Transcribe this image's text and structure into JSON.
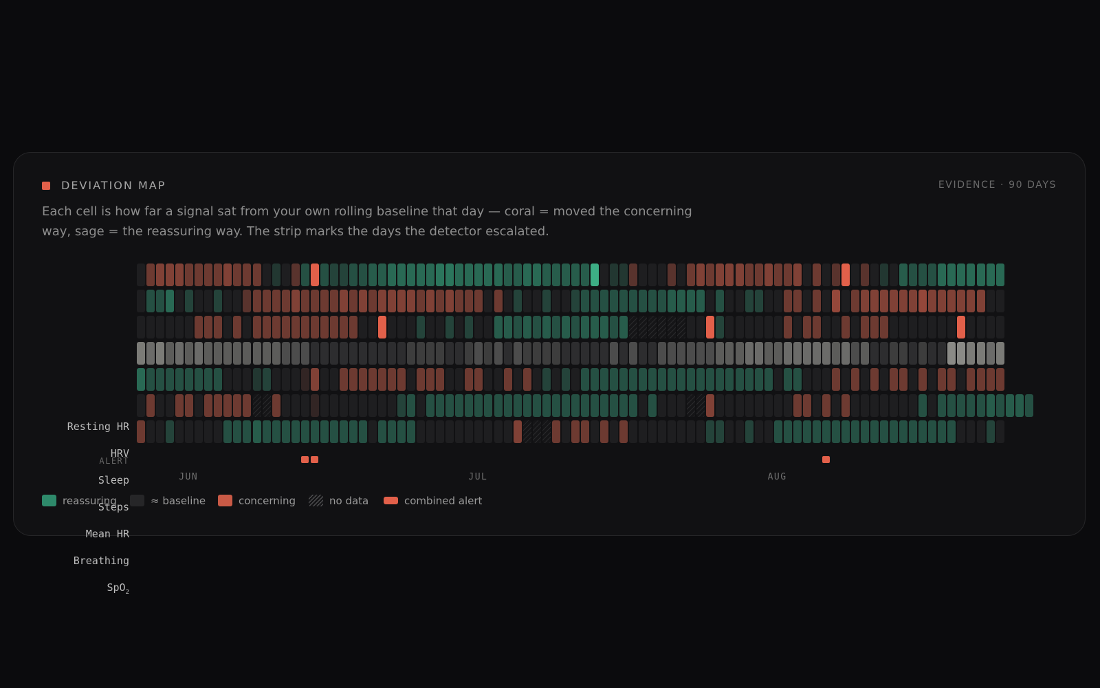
{
  "header": {
    "title": "DEVIATION MAP",
    "evidence": "EVIDENCE · 90 DAYS",
    "description": "Each cell is how far a signal sat from your own rolling baseline that day — coral = moved the concerning way, sage = the reassuring way. The strip marks the days the detector escalated."
  },
  "colors": {
    "reassuring": "#2e8a6b",
    "baseline": "#1e1e20",
    "concerning": "#c95a46",
    "alert": "#e2604a",
    "steps_neutral": "#7a7a78"
  },
  "chart_data": {
    "type": "heatmap",
    "days": 90,
    "scale_note": "values: negative = concerning (coral), positive = reassuring (sage), 0 = at baseline, null = no data; Steps shown in grey intensity",
    "months": [
      {
        "label": "JUN",
        "day_index": 5
      },
      {
        "label": "JUL",
        "day_index": 35
      },
      {
        "label": "AUG",
        "day_index": 66
      }
    ],
    "rows": [
      {
        "label": "Resting HR",
        "values": [
          0,
          -0.4,
          -0.5,
          -0.5,
          -0.5,
          -0.4,
          -0.4,
          -0.4,
          -0.4,
          -0.5,
          -0.4,
          -0.4,
          -0.4,
          0,
          0.2,
          0,
          -0.3,
          0.4,
          -1.0,
          0.4,
          0.3,
          0.3,
          0.4,
          0.4,
          0.5,
          0.5,
          0.6,
          0.6,
          0.6,
          0.6,
          0.6,
          0.7,
          0.7,
          0.6,
          0.6,
          0.6,
          0.6,
          0.6,
          0.5,
          0.5,
          0.6,
          0.6,
          0.5,
          0.5,
          0.5,
          0.5,
          0.5,
          1.0,
          0,
          0.2,
          0.2,
          -0.3,
          0,
          0,
          0,
          -0.3,
          0,
          -0.4,
          -0.5,
          -0.4,
          -0.5,
          -0.5,
          -0.5,
          -0.4,
          -0.4,
          -0.5,
          -0.4,
          -0.4,
          -0.5,
          0,
          -0.4,
          0,
          -0.3,
          -1.0,
          0,
          -0.3,
          0,
          0.2,
          0,
          0.5,
          0.4,
          0.4,
          0.4,
          0.6,
          0.6,
          0.6,
          0.6,
          0.6,
          0.6,
          0.6
        ]
      },
      {
        "label": "HRV",
        "values": [
          0,
          0.4,
          0.4,
          0.6,
          0,
          0.3,
          0,
          0,
          0.3,
          0,
          0,
          -0.3,
          -0.4,
          -0.4,
          -0.4,
          -0.4,
          -0.5,
          -0.4,
          -0.4,
          -0.4,
          -0.4,
          -0.5,
          -0.4,
          -0.5,
          -0.4,
          -0.5,
          -0.5,
          -0.5,
          -0.5,
          -0.4,
          -0.5,
          -0.4,
          -0.5,
          -0.4,
          -0.4,
          -0.4,
          0,
          -0.4,
          0,
          0.3,
          0,
          0,
          0.3,
          0,
          0,
          0.3,
          0.4,
          0.4,
          0.4,
          0.4,
          0.4,
          0.4,
          0.4,
          0.4,
          0.4,
          0.5,
          0.5,
          0.5,
          0.5,
          0,
          0.4,
          0,
          0,
          0.3,
          0.3,
          0,
          0,
          -0.4,
          -0.4,
          0,
          -0.4,
          0,
          -0.6,
          0,
          -0.4,
          -0.5,
          -0.5,
          -0.5,
          -0.5,
          -0.5,
          -0.5,
          -0.6,
          -0.5,
          -0.5,
          -0.5,
          -0.5,
          -0.5,
          -0.5,
          0,
          0
        ]
      },
      {
        "label": "Sleep",
        "values": [
          0,
          0,
          0,
          0,
          0,
          0,
          -0.4,
          -0.4,
          -0.4,
          0,
          -0.4,
          0,
          -0.4,
          -0.4,
          -0.4,
          -0.4,
          -0.4,
          -0.4,
          -0.4,
          -0.4,
          -0.4,
          -0.4,
          -0.4,
          0,
          0,
          -1.0,
          0,
          0,
          0,
          0.3,
          0,
          0,
          0.3,
          0,
          0.3,
          0,
          0,
          0.5,
          0.5,
          0.4,
          0.5,
          0.4,
          0.5,
          0.4,
          0.5,
          0.4,
          0.5,
          0.5,
          0.5,
          0.4,
          0.5,
          null,
          null,
          null,
          null,
          null,
          null,
          0,
          0,
          -1.0,
          0.3,
          0,
          0,
          0,
          0,
          0,
          0,
          -0.4,
          0,
          -0.4,
          -0.4,
          0,
          0,
          -0.4,
          0,
          -0.4,
          -0.4,
          -0.4,
          0,
          0,
          0,
          0,
          0,
          0,
          0,
          -1.0,
          0,
          0,
          0,
          0
        ]
      },
      {
        "label": "Steps",
        "values": [
          0.6,
          0.5,
          0.6,
          0.4,
          0.5,
          0.4,
          0.5,
          0.4,
          0.4,
          0.4,
          0.4,
          0.4,
          0.4,
          0.4,
          0.4,
          0.3,
          0.3,
          0.3,
          0.1,
          0.1,
          0.1,
          0.1,
          0.1,
          0.1,
          0.1,
          0.1,
          0.1,
          0.1,
          0.2,
          0.2,
          0.2,
          0.2,
          0.1,
          0.1,
          0.2,
          0.3,
          0.2,
          0.3,
          0.1,
          0.3,
          0.2,
          0.2,
          0.2,
          0.2,
          0.1,
          0.1,
          0.1,
          0.1,
          0.1,
          0.3,
          0.1,
          0.3,
          0.1,
          0.1,
          0.3,
          0.3,
          0.3,
          0.3,
          0.3,
          0.3,
          0.4,
          0.4,
          0.4,
          0.5,
          0.5,
          0.4,
          0.4,
          0.5,
          0.5,
          0.5,
          0.5,
          0.5,
          0.4,
          0.5,
          0.3,
          0.4,
          0.1,
          0.1,
          0.2,
          0.2,
          0.1,
          0.2,
          0.1,
          0.1,
          0.7,
          0.7,
          0.6,
          0.6,
          0.5,
          0.6
        ]
      },
      {
        "label": "Mean HR",
        "values": [
          0.6,
          0.4,
          0.4,
          0.4,
          0.4,
          0.4,
          0.4,
          0.4,
          0.4,
          0,
          0,
          0,
          0.2,
          0.3,
          0,
          0,
          0,
          -0.1,
          -0.5,
          0,
          0,
          -0.4,
          -0.4,
          -0.4,
          -0.4,
          -0.4,
          -0.4,
          -0.4,
          0,
          -0.4,
          -0.4,
          -0.4,
          0,
          0,
          -0.4,
          -0.4,
          0,
          0,
          -0.4,
          0,
          -0.4,
          0,
          0.3,
          0,
          0.3,
          0,
          0.4,
          0.4,
          0.4,
          0.4,
          0.4,
          0.4,
          0.4,
          0.4,
          0.4,
          0.4,
          0.4,
          0.4,
          0.4,
          0.4,
          0.4,
          0.4,
          0.4,
          0.4,
          0.4,
          0.4,
          0,
          0.4,
          0.4,
          0,
          0,
          0,
          -0.4,
          0,
          -0.4,
          0,
          -0.4,
          0,
          -0.4,
          -0.4,
          0,
          -0.4,
          0,
          -0.4,
          -0.4,
          0,
          -0.4,
          -0.4,
          -0.4,
          -0.4
        ]
      },
      {
        "label": "Breathing",
        "values": [
          0,
          -0.4,
          0,
          0,
          -0.4,
          -0.4,
          0,
          -0.4,
          -0.4,
          -0.4,
          -0.4,
          -0.4,
          null,
          null,
          -0.4,
          0,
          0,
          0,
          -0.1,
          0,
          0,
          0,
          0,
          0,
          0,
          0,
          0,
          0.3,
          0.4,
          0,
          0.4,
          0.4,
          0.4,
          0.4,
          0.4,
          0.4,
          0.4,
          0.4,
          0.4,
          0.4,
          0.4,
          0.4,
          0.4,
          0.4,
          0.4,
          0.4,
          0.4,
          0.4,
          0.4,
          0.4,
          0.4,
          0.4,
          0,
          0.4,
          0,
          0,
          0,
          null,
          null,
          -0.5,
          0,
          0,
          0,
          0,
          0,
          0,
          0,
          0,
          -0.4,
          -0.4,
          0,
          -0.4,
          0,
          -0.4,
          0,
          0,
          0,
          0,
          0,
          0,
          0,
          0.4,
          0,
          0.4,
          0.4,
          0.4,
          0.4,
          0.4,
          0.5,
          0.4,
          0.5,
          0.5,
          0.4
        ]
      },
      {
        "label": "SpO2",
        "values": [
          -0.4,
          0,
          0,
          0.3,
          0,
          0,
          0,
          0,
          0,
          0.4,
          0.4,
          0.4,
          0.5,
          0.4,
          0.4,
          0.4,
          0.4,
          0.4,
          0.4,
          0.4,
          0.4,
          0.4,
          0.4,
          0.4,
          0,
          0.4,
          0.4,
          0.4,
          0.4,
          0,
          0,
          0,
          0,
          0,
          0,
          0,
          0,
          0,
          0,
          -0.5,
          null,
          null,
          null,
          -0.4,
          0,
          -0.4,
          -0.4,
          0,
          -0.4,
          0,
          -0.4,
          0,
          0,
          0,
          0,
          0,
          0,
          0,
          0,
          0.3,
          0.3,
          0,
          0,
          0.3,
          0,
          0,
          0.4,
          0.4,
          0.4,
          0.4,
          0.4,
          0.4,
          0.4,
          0.4,
          0.4,
          0.4,
          0.4,
          0.4,
          0.4,
          0.4,
          0.4,
          0.4,
          0.4,
          0.4,
          0.4,
          0,
          0,
          0,
          0.3,
          0
        ]
      }
    ],
    "alerts": [
      17,
      18,
      71
    ]
  },
  "rows_display": {
    "resting_hr": "Resting HR",
    "hrv": "HRV",
    "sleep": "Sleep",
    "steps": "Steps",
    "mean_hr": "Mean HR",
    "breathing": "Breathing",
    "spo2_base": "SpO",
    "spo2_sub": "2",
    "alert": "ALERT"
  },
  "legend": [
    {
      "label": "reassuring",
      "key": "reassuring"
    },
    {
      "label": "≈ baseline",
      "key": "baseline"
    },
    {
      "label": "concerning",
      "key": "concerning"
    },
    {
      "label": "no data",
      "key": "nodata"
    },
    {
      "label": "combined alert",
      "key": "alert"
    }
  ]
}
